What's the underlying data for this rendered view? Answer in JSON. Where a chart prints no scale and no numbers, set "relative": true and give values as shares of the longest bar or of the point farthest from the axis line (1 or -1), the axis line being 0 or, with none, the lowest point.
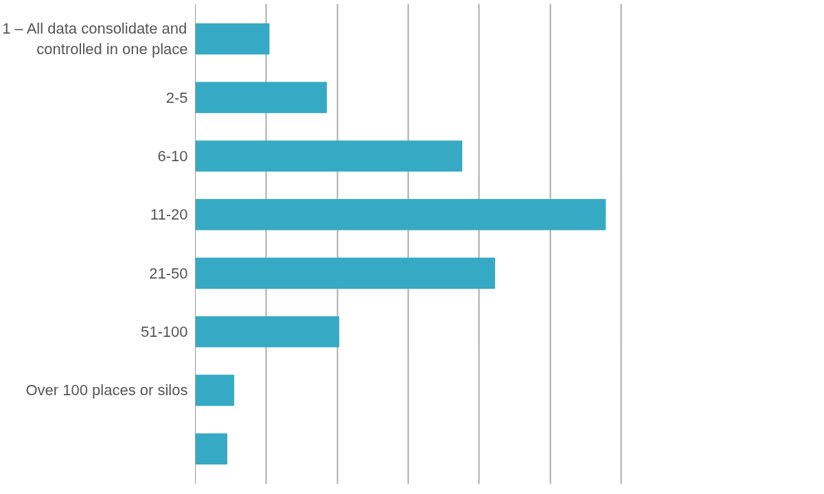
{
  "chart_data": {
    "type": "bar",
    "orientation": "horizontal",
    "relative": true,
    "grid": "x",
    "categories": [
      "1 – All data consolidate and controlled in one place",
      "2-5",
      "6-10",
      "11-20",
      "21-50",
      "51-100",
      "Over 100 places or silos",
      null
    ],
    "values": [
      0.18,
      0.32,
      0.65,
      1,
      0.73,
      0.35,
      0.094,
      0.077
    ],
    "color": "#36aac4"
  }
}
